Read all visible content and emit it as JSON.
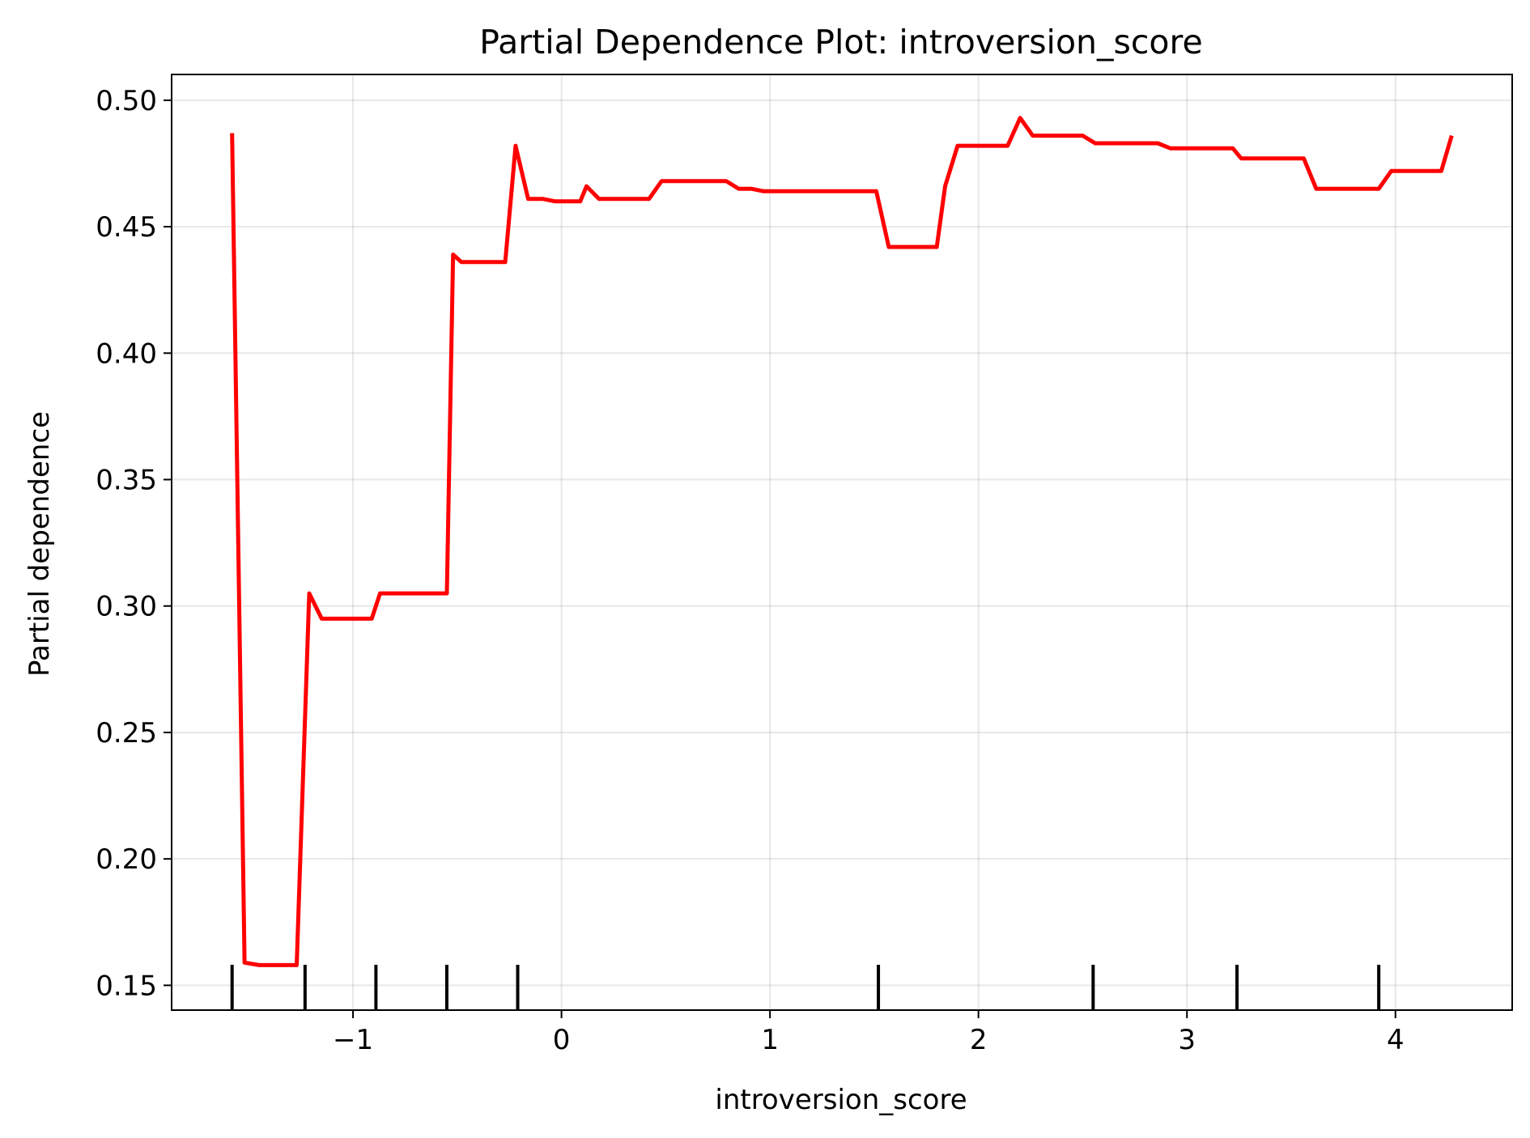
{
  "chart_data": {
    "type": "line",
    "title": "Partial Dependence Plot: introversion_score",
    "xlabel": "introversion_score",
    "ylabel": "Partial dependence",
    "xlim": [
      -1.87,
      4.56
    ],
    "ylim": [
      0.1402,
      0.5102
    ],
    "xticks": [
      -1,
      0,
      1,
      2,
      3,
      4
    ],
    "xtick_labels": [
      "−1",
      "0",
      "1",
      "2",
      "3",
      "4"
    ],
    "yticks": [
      0.15,
      0.2,
      0.25,
      0.3,
      0.35,
      0.4,
      0.45,
      0.5
    ],
    "ytick_labels": [
      "0.15",
      "0.20",
      "0.25",
      "0.30",
      "0.35",
      "0.40",
      "0.45",
      "0.50"
    ],
    "grid": true,
    "series": [
      {
        "color": "#ff0000",
        "x": [
          -1.58,
          -1.52,
          -1.45,
          -1.39,
          -1.33,
          -1.27,
          -1.21,
          -1.15,
          -1.09,
          -1.03,
          -0.97,
          -0.91,
          -0.87,
          -0.79,
          -0.73,
          -0.67,
          -0.61,
          -0.55,
          -0.52,
          -0.48,
          -0.42,
          -0.36,
          -0.27,
          -0.22,
          -0.16,
          -0.09,
          -0.03,
          0.03,
          0.09,
          0.12,
          0.18,
          0.24,
          0.3,
          0.36,
          0.42,
          0.48,
          0.55,
          0.61,
          0.67,
          0.73,
          0.79,
          0.85,
          0.91,
          0.97,
          1.03,
          1.09,
          1.15,
          1.21,
          1.27,
          1.33,
          1.39,
          1.45,
          1.51,
          1.57,
          1.63,
          1.69,
          1.75,
          1.8,
          1.84,
          1.9,
          1.96,
          2.02,
          2.08,
          2.14,
          2.2,
          2.26,
          2.32,
          2.38,
          2.44,
          2.5,
          2.56,
          2.62,
          2.68,
          2.74,
          2.8,
          2.86,
          2.92,
          2.98,
          3.04,
          3.1,
          3.16,
          3.22,
          3.26,
          3.34,
          3.4,
          3.46,
          3.52,
          3.56,
          3.62,
          3.68,
          3.74,
          3.8,
          3.86,
          3.92,
          3.98,
          4.04,
          4.1,
          4.16,
          4.22,
          4.27
        ],
        "y": [
          0.487,
          0.159,
          0.158,
          0.158,
          0.158,
          0.158,
          0.305,
          0.295,
          0.295,
          0.295,
          0.295,
          0.295,
          0.305,
          0.305,
          0.305,
          0.305,
          0.305,
          0.305,
          0.439,
          0.436,
          0.436,
          0.436,
          0.436,
          0.482,
          0.461,
          0.461,
          0.46,
          0.46,
          0.46,
          0.466,
          0.461,
          0.461,
          0.461,
          0.461,
          0.461,
          0.468,
          0.468,
          0.468,
          0.468,
          0.468,
          0.468,
          0.465,
          0.465,
          0.464,
          0.464,
          0.464,
          0.464,
          0.464,
          0.464,
          0.464,
          0.464,
          0.464,
          0.464,
          0.442,
          0.442,
          0.442,
          0.442,
          0.442,
          0.466,
          0.482,
          0.482,
          0.482,
          0.482,
          0.482,
          0.493,
          0.486,
          0.486,
          0.486,
          0.486,
          0.486,
          0.483,
          0.483,
          0.483,
          0.483,
          0.483,
          0.483,
          0.481,
          0.481,
          0.481,
          0.481,
          0.481,
          0.481,
          0.477,
          0.477,
          0.477,
          0.477,
          0.477,
          0.477,
          0.465,
          0.465,
          0.465,
          0.465,
          0.465,
          0.465,
          0.472,
          0.472,
          0.472,
          0.472,
          0.472,
          0.486
        ]
      }
    ],
    "deciles": [
      -1.58,
      -1.23,
      -0.89,
      -0.55,
      -0.21,
      1.52,
      2.55,
      3.24,
      3.92
    ]
  }
}
